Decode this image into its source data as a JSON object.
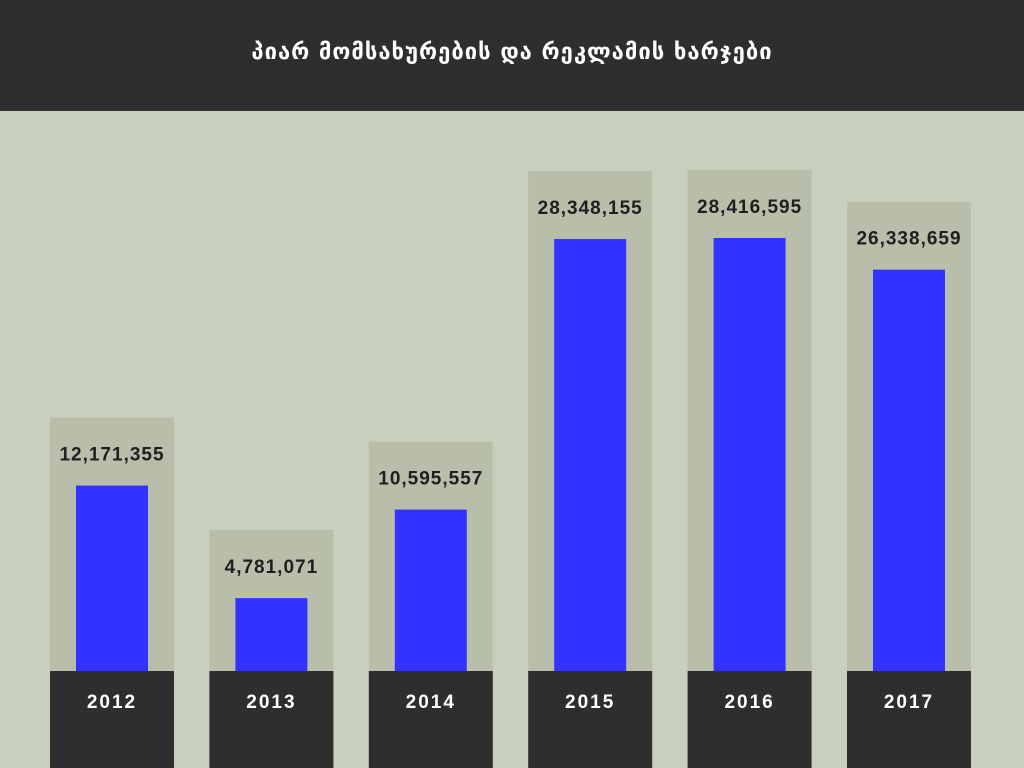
{
  "colors": {
    "background": "#c9cfbd",
    "header": "#2e2e2e",
    "panel": "#b9beab",
    "bar": "#3333ff",
    "category_panel": "#2e2e2e"
  },
  "chart_data": {
    "type": "bar",
    "title": "პიარ მომსახურების და რეკლამის ხარჯები",
    "xlabel": "",
    "ylabel": "",
    "categories": [
      "2012",
      "2013",
      "2014",
      "2015",
      "2016",
      "2017"
    ],
    "values": [
      12171355,
      4781071,
      10595557,
      28348155,
      28416595,
      26338659
    ],
    "value_labels": [
      "12,171,355",
      "4,781,071",
      "10,595,557",
      "28,348,155",
      "28,416,595",
      "26,338,659"
    ],
    "ylim": [
      0,
      28416595
    ],
    "grid": false,
    "legend": "none"
  }
}
